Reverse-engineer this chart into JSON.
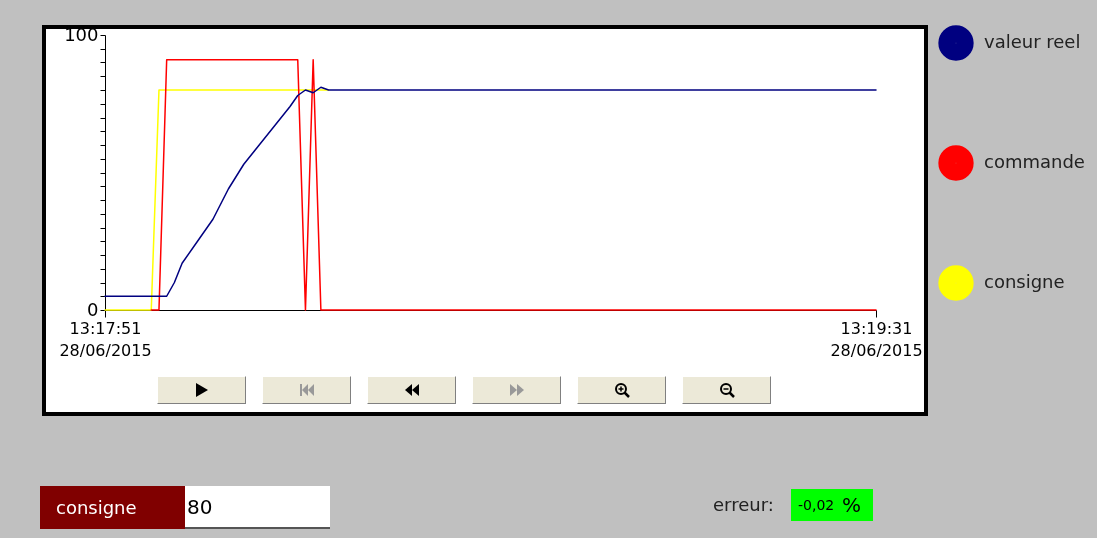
{
  "chart_data": {
    "type": "line",
    "xlim": [
      "2015-06-28T13:17:51",
      "2015-06-28T13:19:31"
    ],
    "xticks": [
      {
        "value": "2015-06-28T13:17:51",
        "label": "13:17:51 28/06/2015"
      },
      {
        "value": "2015-06-28T13:19:31",
        "label": "13:19:31 28/06/2015"
      }
    ],
    "ylim": [
      0,
      100
    ],
    "yticks": [
      0,
      {
        "value": 5,
        "label": null
      },
      {
        "value": 10,
        "label": null
      },
      {
        "value": 15,
        "label": null
      },
      {
        "value": 20,
        "label": null
      },
      {
        "value": 25,
        "label": null
      },
      {
        "value": 30,
        "label": null
      },
      {
        "value": 35,
        "label": null
      },
      {
        "value": 40,
        "label": null
      },
      {
        "value": 45,
        "label": null
      },
      {
        "value": 50,
        "label": null
      },
      {
        "value": 55,
        "label": null
      },
      {
        "value": 60,
        "label": null
      },
      {
        "value": 65,
        "label": null
      },
      {
        "value": 70,
        "label": null
      },
      {
        "value": 75,
        "label": null
      },
      {
        "value": 80,
        "label": null
      },
      {
        "value": 85,
        "label": null
      },
      {
        "value": 90,
        "label": null
      },
      {
        "value": 95,
        "label": null
      },
      100
    ],
    "grid": false,
    "marker": "none",
    "line_style": "solid",
    "legend": "right",
    "series": [
      {
        "name": "valeur reel",
        "color": "#000080",
        "x": [
          "2015-06-28T13:17:51",
          "2015-06-28T13:17:59",
          "2015-06-28T13:18:00",
          "2015-06-28T13:18:01",
          "2015-06-28T13:18:03",
          "2015-06-28T13:18:05",
          "2015-06-28T13:18:07",
          "2015-06-28T13:18:09",
          "2015-06-28T13:18:11",
          "2015-06-28T13:18:13",
          "2015-06-28T13:18:15",
          "2015-06-28T13:18:16",
          "2015-06-28T13:18:17",
          "2015-06-28T13:18:18",
          "2015-06-28T13:18:19",
          "2015-06-28T13:18:20",
          "2015-06-28T13:19:31"
        ],
        "values": [
          5,
          5,
          10,
          17,
          25,
          33,
          44,
          53,
          60,
          67,
          74,
          78,
          80,
          79,
          81,
          80,
          80
        ]
      },
      {
        "name": "commande",
        "color": "#ff0000",
        "x": [
          "2015-06-28T13:17:57",
          "2015-06-28T13:17:58",
          "2015-06-28T13:17:59",
          "2015-06-28T13:18:16",
          "2015-06-28T13:18:17",
          "2015-06-28T13:18:18",
          "2015-06-28T13:18:19",
          "2015-06-28T13:19:31"
        ],
        "values": [
          0,
          0,
          91,
          91,
          0,
          91,
          0,
          0
        ]
      },
      {
        "name": "consigne",
        "color": "#ffff00",
        "x": [
          "2015-06-28T13:17:51",
          "2015-06-28T13:17:57",
          "2015-06-28T13:17:58",
          "2015-06-28T13:18:20"
        ],
        "values": [
          0,
          0,
          80,
          80
        ]
      }
    ],
    "annotations": [
      "consigne",
      "80",
      "erreur:",
      "-0,02",
      "%"
    ]
  }
}
